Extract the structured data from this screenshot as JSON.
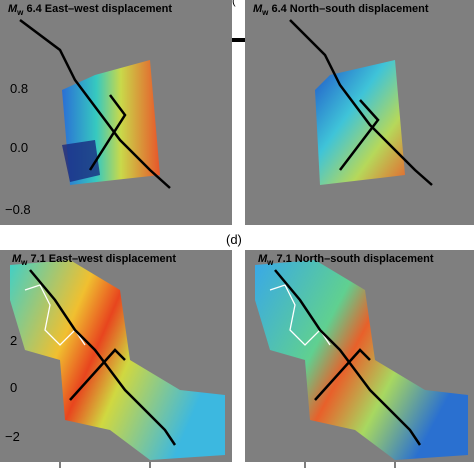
{
  "figure": {
    "top_label": "(",
    "panel_label": "(d)",
    "panels": [
      {
        "prefix": "M",
        "sub": "w",
        "rest": " 6.4 East–west displacement"
      },
      {
        "prefix": "M",
        "sub": "w",
        "rest": " 6.4 North–south displacement"
      },
      {
        "prefix": "M",
        "sub": "w",
        "rest": " 7.1 East–west displacement"
      },
      {
        "prefix": "M",
        "sub": "w",
        "rest": " 7.1 North–south displacement"
      }
    ],
    "top_ticks": [
      "0.8",
      "0.0",
      "−0.8"
    ],
    "bottom_ticks": [
      "2",
      "0",
      "−2"
    ]
  }
}
